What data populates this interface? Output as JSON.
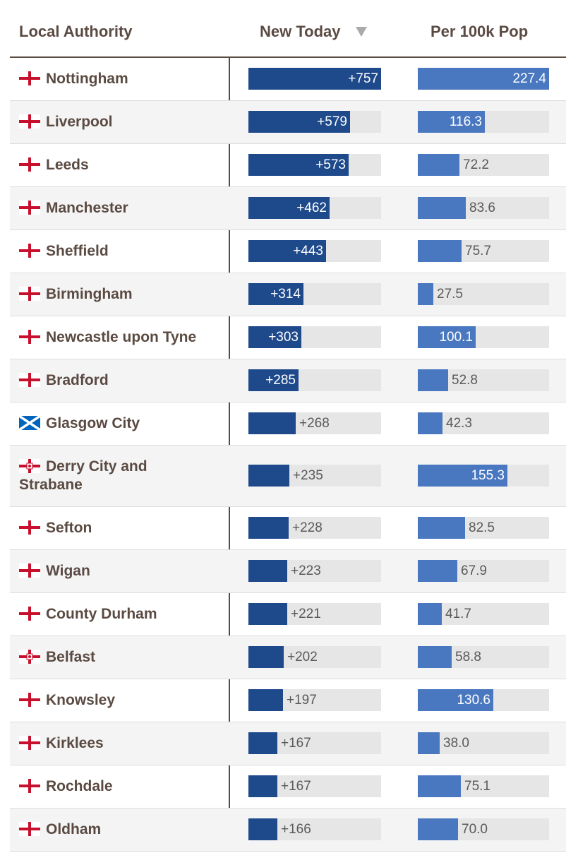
{
  "headers": {
    "name": "Local Authority",
    "new_today": "New Today",
    "per_100k": "Per 100k Pop"
  },
  "colors": {
    "new_bar": "#1e4a8c",
    "per_bar": "#4a78c0",
    "track": "#e6e6e6",
    "text": "#5a4a42"
  },
  "chart_data": {
    "type": "table",
    "title": "",
    "columns": [
      "Local Authority",
      "New Today",
      "Per 100k Pop"
    ],
    "sort": "New Today descending",
    "new_today_max": 757,
    "per_100k_max": 227.4,
    "rows": [
      {
        "name": "Nottingham",
        "flag": "england-flag-icon",
        "new_today": 757,
        "new_label": "+757",
        "per_100k": 227.4,
        "per_label": "227.4"
      },
      {
        "name": "Liverpool",
        "flag": "england-flag-icon",
        "new_today": 579,
        "new_label": "+579",
        "per_100k": 116.3,
        "per_label": "116.3"
      },
      {
        "name": "Leeds",
        "flag": "england-flag-icon",
        "new_today": 573,
        "new_label": "+573",
        "per_100k": 72.2,
        "per_label": "72.2"
      },
      {
        "name": "Manchester",
        "flag": "england-flag-icon",
        "new_today": 462,
        "new_label": "+462",
        "per_100k": 83.6,
        "per_label": "83.6"
      },
      {
        "name": "Sheffield",
        "flag": "england-flag-icon",
        "new_today": 443,
        "new_label": "+443",
        "per_100k": 75.7,
        "per_label": "75.7"
      },
      {
        "name": "Birmingham",
        "flag": "england-flag-icon",
        "new_today": 314,
        "new_label": "+314",
        "per_100k": 27.5,
        "per_label": "27.5"
      },
      {
        "name": "Newcastle upon Tyne",
        "flag": "england-flag-icon",
        "new_today": 303,
        "new_label": "+303",
        "per_100k": 100.1,
        "per_label": "100.1"
      },
      {
        "name": "Bradford",
        "flag": "england-flag-icon",
        "new_today": 285,
        "new_label": "+285",
        "per_100k": 52.8,
        "per_label": "52.8"
      },
      {
        "name": "Glasgow City",
        "flag": "scotland-flag-icon",
        "new_today": 268,
        "new_label": "+268",
        "per_100k": 42.3,
        "per_label": "42.3"
      },
      {
        "name": "Derry City and Strabane",
        "flag": "northern-ireland-flag-icon",
        "new_today": 235,
        "new_label": "+235",
        "per_100k": 155.3,
        "per_label": "155.3"
      },
      {
        "name": "Sefton",
        "flag": "england-flag-icon",
        "new_today": 228,
        "new_label": "+228",
        "per_100k": 82.5,
        "per_label": "82.5"
      },
      {
        "name": "Wigan",
        "flag": "england-flag-icon",
        "new_today": 223,
        "new_label": "+223",
        "per_100k": 67.9,
        "per_label": "67.9"
      },
      {
        "name": "County Durham",
        "flag": "england-flag-icon",
        "new_today": 221,
        "new_label": "+221",
        "per_100k": 41.7,
        "per_label": "41.7"
      },
      {
        "name": "Belfast",
        "flag": "northern-ireland-flag-icon",
        "new_today": 202,
        "new_label": "+202",
        "per_100k": 58.8,
        "per_label": "58.8"
      },
      {
        "name": "Knowsley",
        "flag": "england-flag-icon",
        "new_today": 197,
        "new_label": "+197",
        "per_100k": 130.6,
        "per_label": "130.6"
      },
      {
        "name": "Kirklees",
        "flag": "england-flag-icon",
        "new_today": 167,
        "new_label": "+167",
        "per_100k": 38.0,
        "per_label": "38.0"
      },
      {
        "name": "Rochdale",
        "flag": "england-flag-icon",
        "new_today": 167,
        "new_label": "+167",
        "per_100k": 75.1,
        "per_label": "75.1"
      },
      {
        "name": "Oldham",
        "flag": "england-flag-icon",
        "new_today": 166,
        "new_label": "+166",
        "per_100k": 70.0,
        "per_label": "70.0"
      }
    ]
  }
}
